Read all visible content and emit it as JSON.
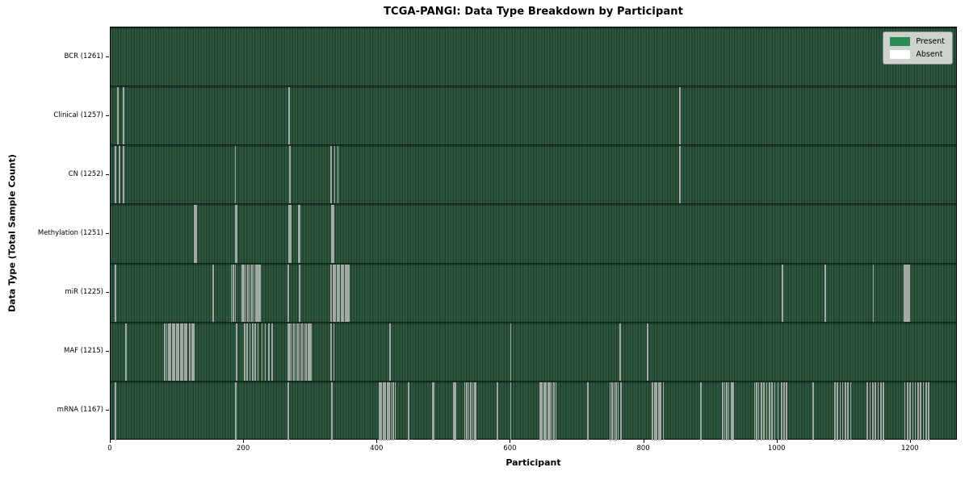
{
  "chart_data": {
    "type": "heatmap",
    "title": "TCGA-PANGI: Data Type Breakdown by Participant",
    "xlabel": "Participant",
    "ylabel": "Data Type (Total Sample Count)",
    "legend": {
      "present": "Present",
      "absent": "Absent",
      "position": "upper right"
    },
    "grid": false,
    "n_participants": 1261,
    "x_ticks": [
      0,
      200,
      400,
      600,
      800,
      1000,
      1200
    ],
    "x_max": 1268,
    "colors": {
      "present": "#2e8b57",
      "absent": "#ffffff",
      "bar_stripe_light": "#2e5941",
      "bar_stripe_dark": "#203e2d",
      "absent_line_rendered": "#a3aaa3",
      "legend_bg": "#dadeda"
    },
    "rows": [
      {
        "label": "BCR (1261)",
        "name": "BCR",
        "present_count": 1261,
        "absent_participants": []
      },
      {
        "label": "Clinical (1257)",
        "name": "Clinical",
        "present_count": 1257,
        "absent_participants": [
          10,
          18,
          267,
          853
        ]
      },
      {
        "label": "CN (1252)",
        "name": "CN",
        "present_count": 1252,
        "absent_participants": [
          6,
          12,
          18,
          186,
          268,
          330,
          335,
          340,
          853
        ]
      },
      {
        "label": "Methylation (1251)",
        "name": "Methylation",
        "present_count": 1251,
        "absent_participants": [
          125,
          127,
          186,
          188,
          267,
          269,
          281,
          283,
          331,
          333
        ]
      },
      {
        "label": "miR (1225)",
        "name": "miR",
        "present_count": 1225,
        "absent_participants": [
          6,
          153,
          180,
          183,
          186,
          196,
          199,
          202,
          205,
          208,
          211,
          214,
          217,
          219,
          221,
          223,
          265,
          282,
          330,
          333,
          336,
          339,
          342,
          345,
          348,
          351,
          354,
          356,
          1007,
          1071,
          1143,
          1189,
          1191,
          1193,
          1195,
          1197
        ]
      },
      {
        "label": "MAF (1215)",
        "name": "MAF",
        "present_count": 1215,
        "absent_participants": [
          22,
          80,
          83,
          86,
          89,
          92,
          95,
          98,
          101,
          104,
          107,
          110,
          113,
          118,
          121,
          124,
          188,
          200,
          204,
          208,
          212,
          216,
          220,
          226,
          231,
          236,
          241,
          265,
          268,
          271,
          274,
          277,
          280,
          283,
          286,
          289,
          292,
          295,
          297,
          299,
          330,
          334,
          418,
          599,
          763,
          804
        ]
      },
      {
        "label": "mRNA (1167)",
        "name": "mRNA",
        "present_count": 1167,
        "absent_participants": [
          6,
          187,
          265,
          331,
          402,
          405,
          408,
          411,
          414,
          417,
          420,
          423,
          426,
          446,
          482,
          484,
          514,
          516,
          530,
          533,
          536,
          539,
          542,
          545,
          547,
          579,
          599,
          643,
          646,
          649,
          652,
          655,
          658,
          661,
          664,
          667,
          715,
          748,
          751,
          754,
          757,
          760,
          764,
          812,
          815,
          818,
          821,
          824,
          828,
          884,
          917,
          920,
          923,
          926,
          930,
          933,
          965,
          968,
          971,
          975,
          979,
          983,
          987,
          991,
          995,
          1000,
          1005,
          1009,
          1013,
          1053,
          1085,
          1089,
          1093,
          1097,
          1101,
          1105,
          1109,
          1134,
          1138,
          1142,
          1146,
          1150,
          1154,
          1158,
          1190,
          1194,
          1198,
          1202,
          1206,
          1210,
          1214,
          1218,
          1222,
          1226
        ]
      }
    ]
  }
}
